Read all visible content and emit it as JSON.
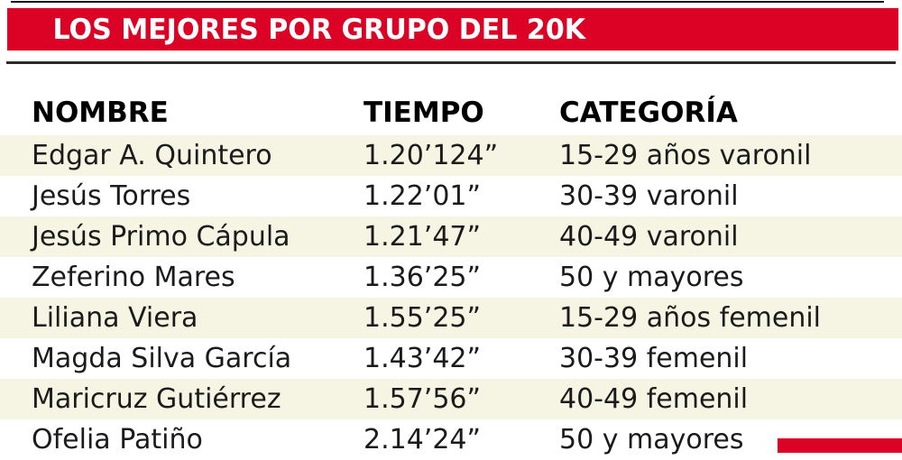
{
  "title": "LOS MEJORES POR GRUPO DEL 20K",
  "colors": {
    "accent_red": "#db0226",
    "row_stripe": "#f6f5e3",
    "rule_dark": "#2b2b2b",
    "text": "#1b1b1b"
  },
  "chart_data": {
    "type": "table",
    "title": "LOS MEJORES POR GRUPO DEL 20K",
    "columns": [
      "NOMBRE",
      "TIEMPO",
      "CATEGORÍA"
    ],
    "rows": [
      [
        "Edgar A. Quintero",
        "1.20’124”",
        "15-29 años varonil"
      ],
      [
        "Jesús Torres",
        "1.22’01”",
        "30-39 varonil"
      ],
      [
        "Jesús Primo Cápula",
        "1.21’47”",
        "40-49 varonil"
      ],
      [
        "Zeferino Mares",
        "1.36’25”",
        "50 y mayores"
      ],
      [
        "Liliana Viera",
        "1.55’25”",
        "15-29 años femenil"
      ],
      [
        "Magda Silva García",
        "1.43’42”",
        "30-39 femenil"
      ],
      [
        "Maricruz Gutiérrez",
        "1.57’56”",
        "40-49 femenil"
      ],
      [
        "Ofelia Patiño",
        "2.14’24”",
        "50 y mayores"
      ]
    ],
    "layout_hints": {
      "striped_rows": "odd rows cream, even rows white",
      "header_style": "bold black on white",
      "last_row_clipped_at_bottom": true
    }
  }
}
